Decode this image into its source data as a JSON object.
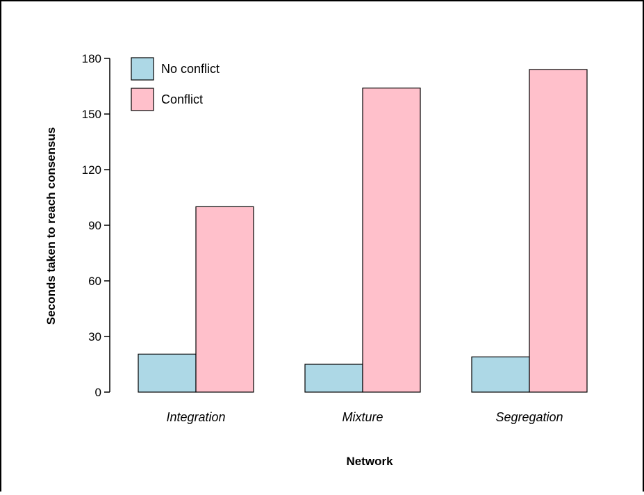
{
  "chart_data": {
    "type": "bar",
    "title": "",
    "xlabel": "Network",
    "ylabel": "Seconds taken to reach consensus",
    "categories": [
      "Integration",
      "Mixture",
      "Segregation"
    ],
    "series": [
      {
        "name": "No conflict",
        "color": "#add8e6",
        "values": [
          20.5,
          15,
          19
        ]
      },
      {
        "name": "Conflict",
        "color": "#ffc0cb",
        "values": [
          100,
          164,
          174
        ]
      }
    ],
    "ylim": [
      0,
      180
    ],
    "yticks": [
      0,
      30,
      60,
      90,
      120,
      150,
      180
    ],
    "grid": false,
    "legend_position": "top-left"
  }
}
